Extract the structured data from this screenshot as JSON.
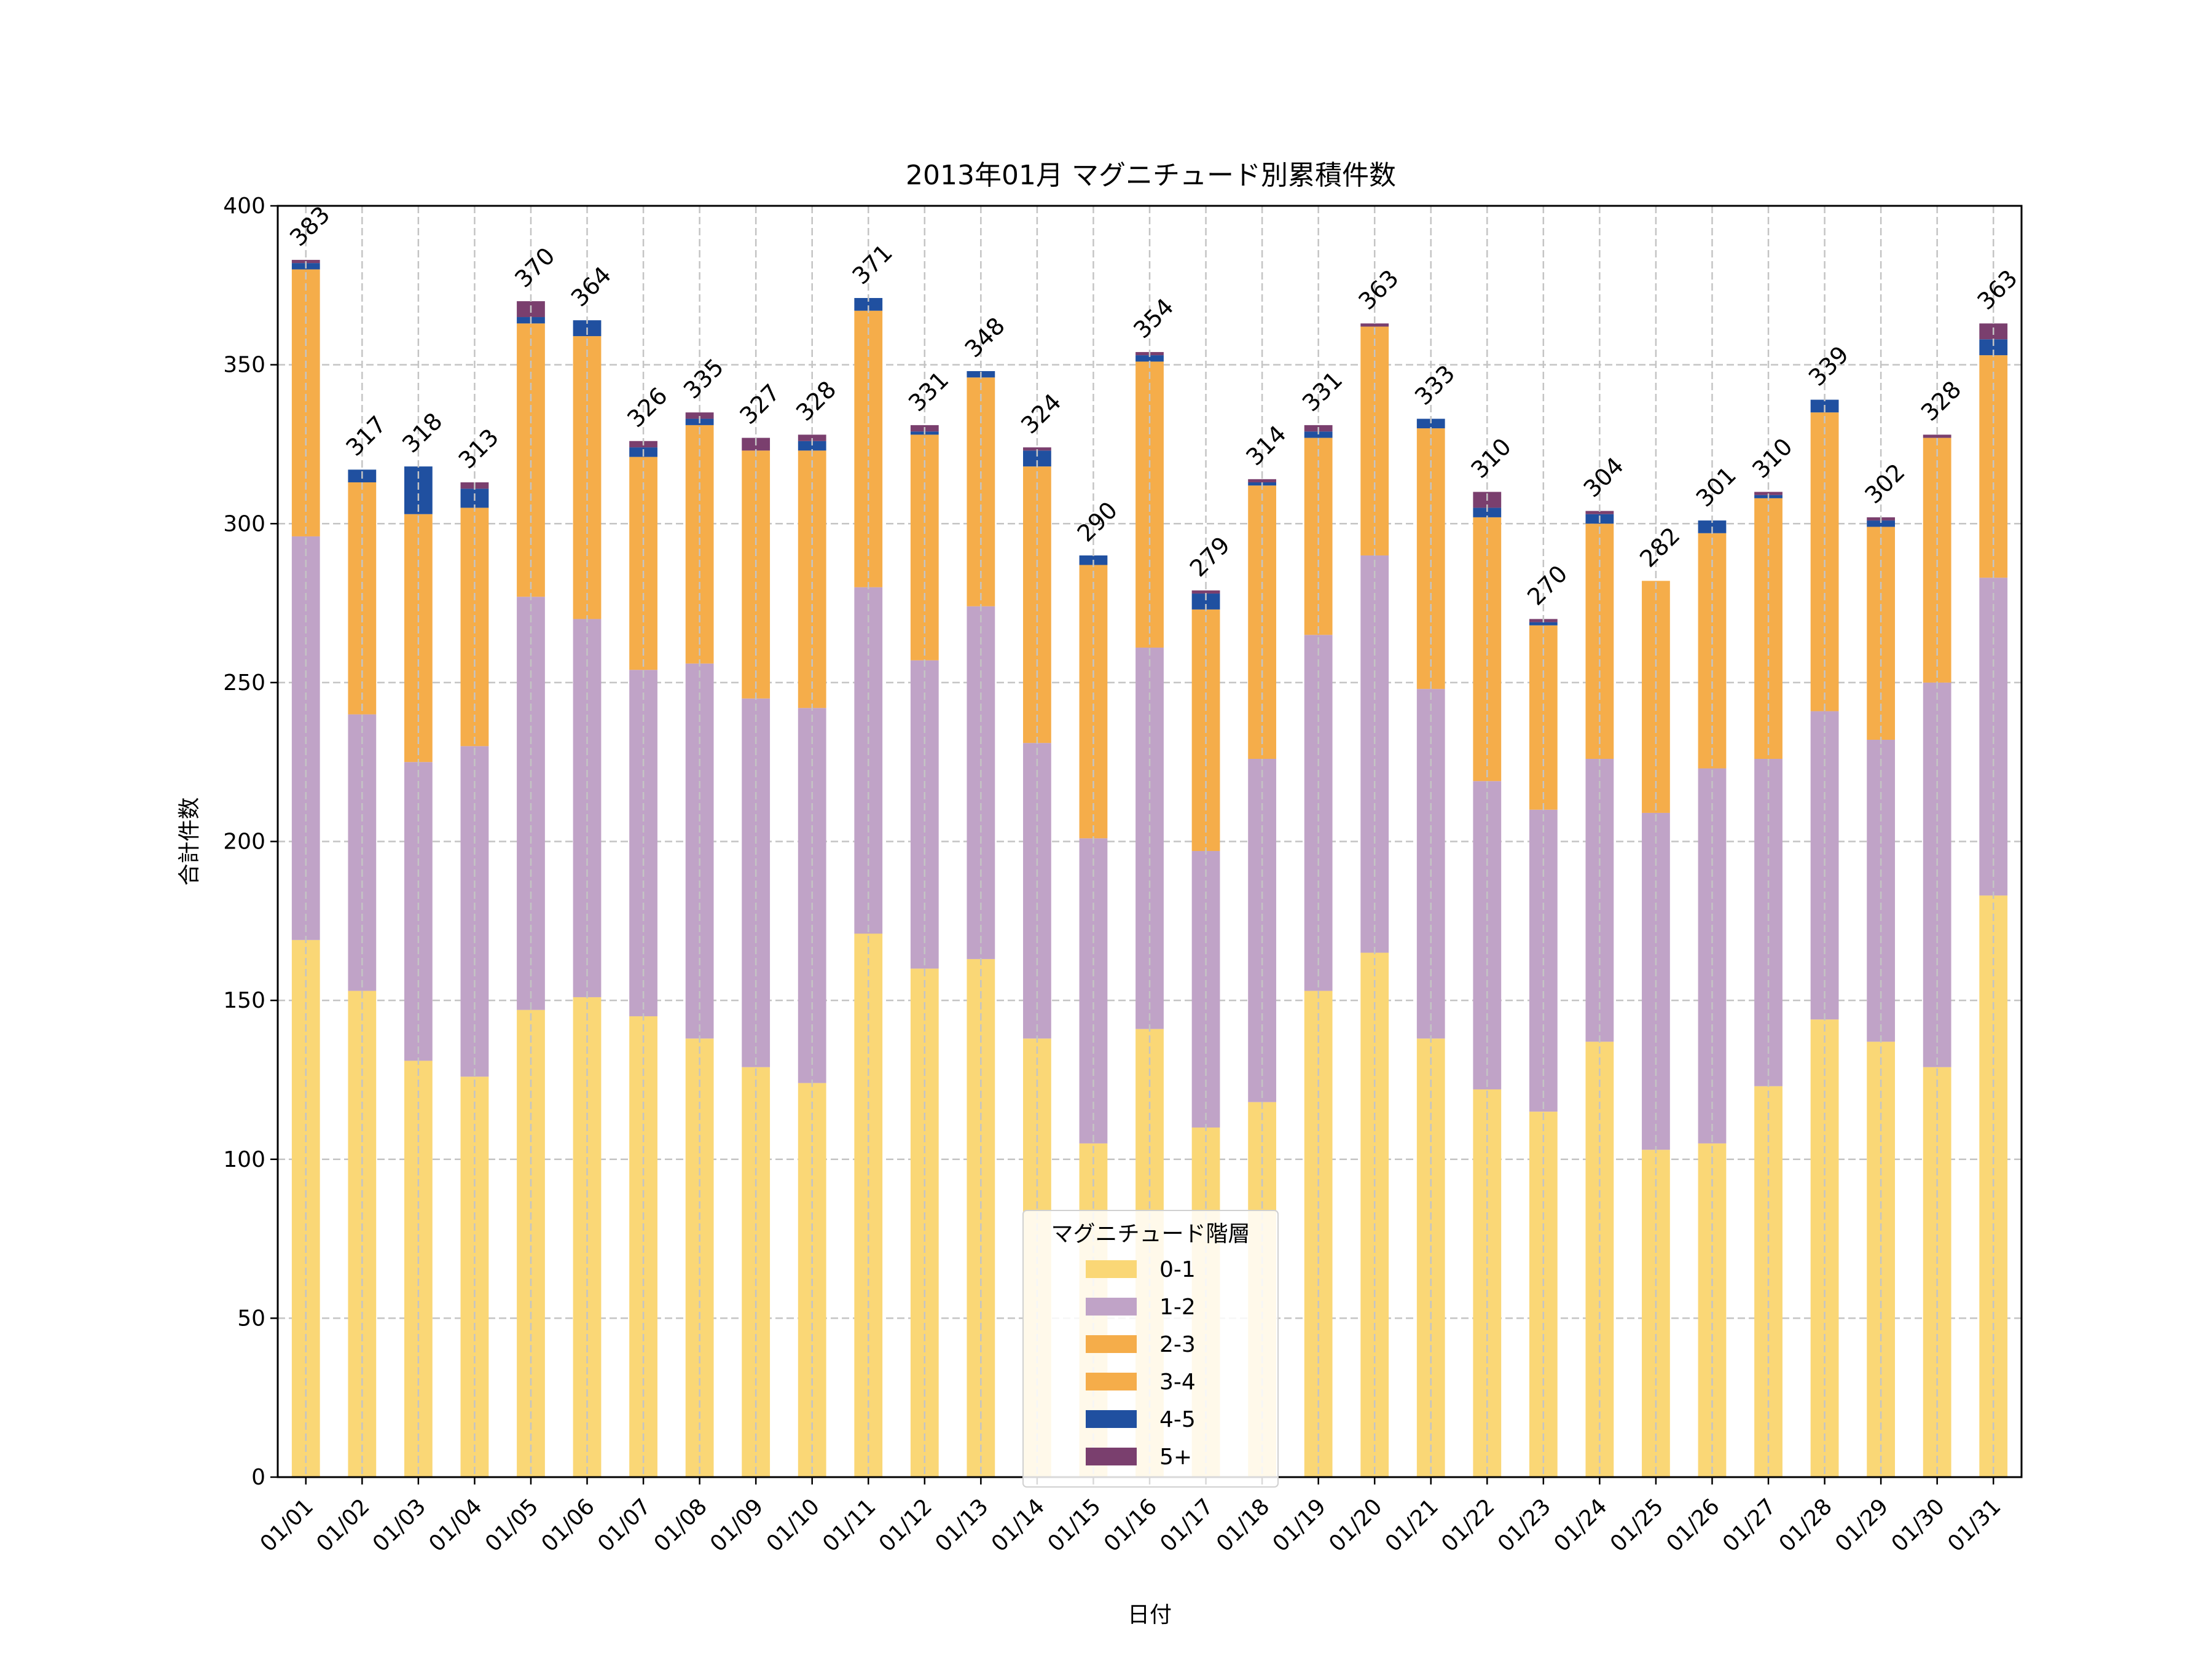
{
  "chart_data": {
    "type": "bar",
    "stacked": true,
    "title": "2013年01月 マグニチュード別累積件数",
    "xlabel": "日付",
    "ylabel": "合計件数",
    "ylim": [
      0,
      400
    ],
    "yticks": [
      0,
      50,
      100,
      150,
      200,
      250,
      300,
      350,
      400
    ],
    "grid": true,
    "legend": {
      "title": "マグニチュード階層",
      "placement": "bottom-center"
    },
    "categories": [
      "01/01",
      "01/02",
      "01/03",
      "01/04",
      "01/05",
      "01/06",
      "01/07",
      "01/08",
      "01/09",
      "01/10",
      "01/11",
      "01/12",
      "01/13",
      "01/14",
      "01/15",
      "01/16",
      "01/17",
      "01/18",
      "01/19",
      "01/20",
      "01/21",
      "01/22",
      "01/23",
      "01/24",
      "01/25",
      "01/26",
      "01/27",
      "01/28",
      "01/29",
      "01/30",
      "01/31"
    ],
    "series": [
      {
        "name": "0-1",
        "color": "#FAD776",
        "values": [
          169,
          153,
          131,
          126,
          147,
          151,
          145,
          138,
          129,
          124,
          171,
          160,
          163,
          138,
          105,
          141,
          110,
          118,
          153,
          165,
          138,
          122,
          115,
          137,
          103,
          105,
          123,
          144,
          137,
          129,
          183
        ]
      },
      {
        "name": "1-2",
        "color": "#C0A3C7",
        "values": [
          127,
          87,
          94,
          104,
          130,
          119,
          109,
          118,
          116,
          118,
          109,
          97,
          111,
          93,
          96,
          120,
          87,
          108,
          112,
          125,
          110,
          97,
          95,
          89,
          106,
          118,
          103,
          97,
          95,
          121,
          100
        ]
      },
      {
        "name": "2-3",
        "color": "#F5AD4A",
        "values": [
          84,
          73,
          78,
          75,
          86,
          89,
          67,
          75,
          78,
          81,
          87,
          71,
          72,
          87,
          86,
          90,
          76,
          86,
          62,
          72,
          82,
          83,
          58,
          74,
          73,
          74,
          82,
          94,
          67,
          77,
          70
        ]
      },
      {
        "name": "3-4",
        "color": "#F5AD4A",
        "values": [
          0,
          0,
          0,
          0,
          0,
          0,
          0,
          0,
          0,
          0,
          0,
          0,
          0,
          0,
          0,
          0,
          0,
          0,
          0,
          0,
          0,
          0,
          0,
          0,
          0,
          0,
          0,
          0,
          0,
          0,
          0
        ]
      },
      {
        "name": "4-5",
        "color": "#2050A0",
        "values": [
          2,
          4,
          15,
          6,
          2,
          5,
          3,
          2,
          0,
          3,
          4,
          1,
          2,
          5,
          3,
          2,
          5,
          1,
          2,
          0,
          3,
          3,
          1,
          3,
          0,
          4,
          1,
          4,
          2,
          0,
          5
        ]
      },
      {
        "name": "5+",
        "color": "#7A3F6E",
        "values": [
          1,
          0,
          0,
          2,
          5,
          0,
          2,
          2,
          4,
          2,
          0,
          2,
          0,
          1,
          0,
          1,
          1,
          1,
          2,
          1,
          0,
          5,
          1,
          1,
          0,
          0,
          1,
          0,
          1,
          1,
          5
        ]
      }
    ],
    "totals": [
      383,
      317,
      318,
      313,
      370,
      364,
      326,
      335,
      327,
      328,
      371,
      331,
      348,
      324,
      290,
      354,
      279,
      314,
      331,
      363,
      333,
      310,
      270,
      304,
      282,
      301,
      310,
      339,
      302,
      328,
      363
    ]
  }
}
